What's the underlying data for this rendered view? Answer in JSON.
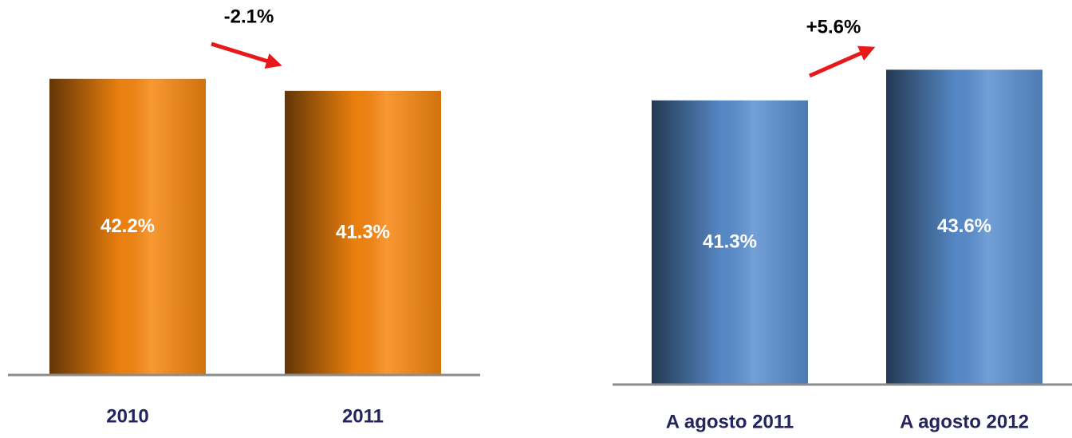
{
  "chart_data": [
    {
      "type": "bar",
      "annotation": "-2.1%",
      "categories": [
        "2010",
        "2011"
      ],
      "values": [
        42.2,
        41.3
      ],
      "value_labels": [
        "42.2%",
        "41.3%"
      ],
      "color": "#f7860f",
      "ylim": [
        20,
        45
      ]
    },
    {
      "type": "bar",
      "annotation": "+5.6%",
      "categories": [
        "A agosto 2011",
        "A agosto 2012"
      ],
      "values": [
        41.3,
        43.6
      ],
      "value_labels": [
        "41.3%",
        "43.6%"
      ],
      "color": "#5a8fd0",
      "ylim": [
        20,
        45
      ]
    }
  ]
}
